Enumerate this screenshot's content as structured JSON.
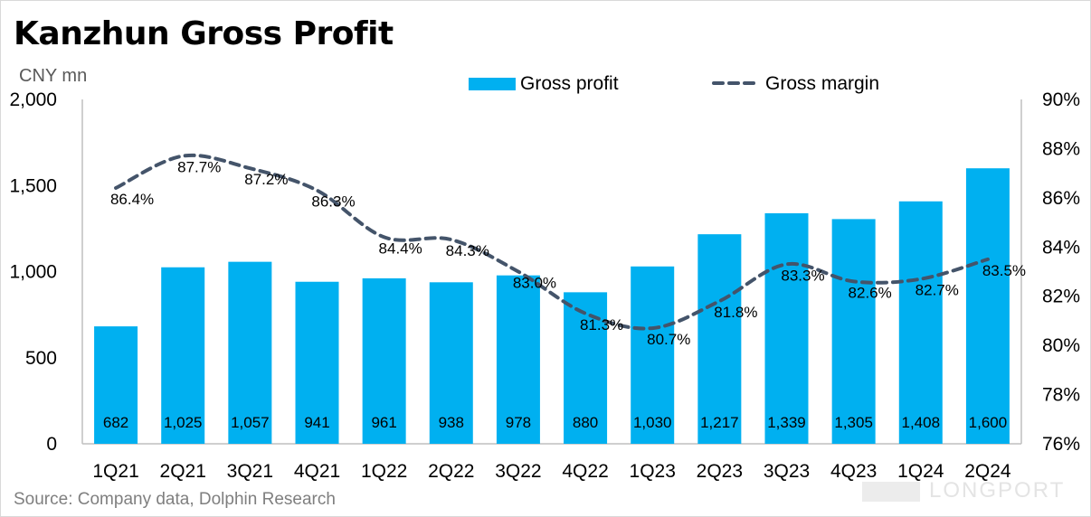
{
  "title": "Kanzhun Gross Profit",
  "unit_label": "CNY mn",
  "source": "Source: Company data, Dolphin Research",
  "watermark": "LONGPORT",
  "colors": {
    "bar": "#00b0f0",
    "line": "#44546a",
    "axis": "#bfbfbf"
  },
  "chart_data": {
    "type": "bar",
    "categories": [
      "1Q21",
      "2Q21",
      "3Q21",
      "4Q21",
      "1Q22",
      "2Q22",
      "3Q22",
      "4Q22",
      "1Q23",
      "2Q23",
      "3Q23",
      "4Q23",
      "1Q24",
      "2Q24"
    ],
    "series": [
      {
        "name": "Gross profit",
        "type": "bar",
        "axis": "left",
        "values": [
          682,
          1025,
          1057,
          941,
          961,
          938,
          978,
          880,
          1030,
          1217,
          1339,
          1305,
          1408,
          1600
        ],
        "labels": [
          "682",
          "1,025",
          "1,057",
          "941",
          "961",
          "938",
          "978",
          "880",
          "1,030",
          "1,217",
          "1,339",
          "1,305",
          "1,408",
          "1,600"
        ]
      },
      {
        "name": "Gross margin",
        "type": "line",
        "style": "dashed",
        "axis": "right",
        "values": [
          86.4,
          87.7,
          87.2,
          86.3,
          84.4,
          84.3,
          83.0,
          81.3,
          80.7,
          81.8,
          83.3,
          82.6,
          82.7,
          83.5
        ],
        "labels": [
          "86.4%",
          "87.7%",
          "87.2%",
          "86.3%",
          "84.4%",
          "84.3%",
          "83.0%",
          "81.3%",
          "80.7%",
          "81.8%",
          "83.3%",
          "82.6%",
          "82.7%",
          "83.5%"
        ]
      }
    ],
    "left_axis": {
      "ylim": [
        0,
        2000
      ],
      "ticks": [
        "0",
        "500",
        "1,000",
        "1,500",
        "2,000"
      ],
      "tick_values": [
        0,
        500,
        1000,
        1500,
        2000
      ]
    },
    "right_axis": {
      "ylim": [
        76,
        90
      ],
      "ticks": [
        "76%",
        "78%",
        "80%",
        "82%",
        "84%",
        "86%",
        "88%",
        "90%"
      ],
      "tick_values": [
        76,
        78,
        80,
        82,
        84,
        86,
        88,
        90
      ]
    },
    "legend_position": "top-center",
    "grid": false
  }
}
